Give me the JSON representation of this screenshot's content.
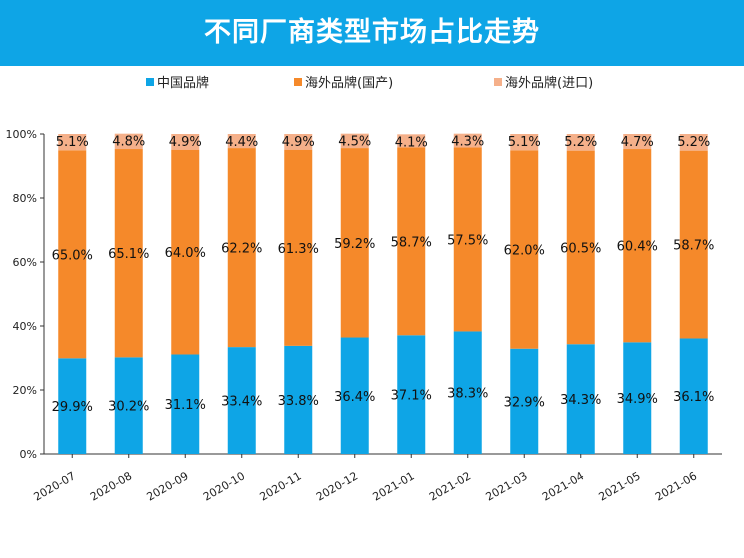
{
  "chart_data": {
    "type": "bar",
    "stacked": true,
    "title": "不同厂商类型市场占比走势",
    "categories": [
      "2020-07",
      "2020-08",
      "2020-09",
      "2020-10",
      "2020-11",
      "2020-12",
      "2021-01",
      "2021-02",
      "2021-03",
      "2021-04",
      "2021-05",
      "2021-06"
    ],
    "series": [
      {
        "name": "中国品牌",
        "color": "#0EA5E6",
        "values": [
          29.9,
          30.2,
          31.1,
          33.4,
          33.8,
          36.4,
          37.1,
          38.3,
          32.9,
          34.3,
          34.9,
          36.1
        ],
        "labels": [
          "29.9%",
          "30.2%",
          "31.1%",
          "33.4%",
          "33.8%",
          "36.4%",
          "37.1%",
          "38.3%",
          "32.9%",
          "34.3%",
          "34.9%",
          "36.1%"
        ]
      },
      {
        "name": "海外品牌(国产)",
        "color": "#F5892A",
        "values": [
          65.0,
          65.1,
          64.0,
          62.2,
          61.3,
          59.2,
          58.7,
          57.5,
          62.0,
          60.5,
          60.4,
          58.7
        ],
        "labels": [
          "65.0%",
          "65.1%",
          "64.0%",
          "62.2%",
          "61.3%",
          "59.2%",
          "58.7%",
          "57.5%",
          "62.0%",
          "60.5%",
          "60.4%",
          "58.7%"
        ]
      },
      {
        "name": "海外品牌(进口)",
        "color": "#F5B08A",
        "values": [
          5.1,
          4.8,
          4.9,
          4.4,
          4.9,
          4.5,
          4.1,
          4.3,
          5.1,
          5.2,
          4.7,
          5.2
        ],
        "labels": [
          "5.1%",
          "4.8%",
          "4.9%",
          "4.4%",
          "4.9%",
          "4.5%",
          "4.1%",
          "4.3%",
          "5.1%",
          "5.2%",
          "4.7%",
          "5.2%"
        ]
      }
    ],
    "ylim": [
      0,
      100
    ],
    "yticks": [
      "0%",
      "20%",
      "40%",
      "60%",
      "80%",
      "100%"
    ],
    "legend": "top",
    "grid": false
  }
}
